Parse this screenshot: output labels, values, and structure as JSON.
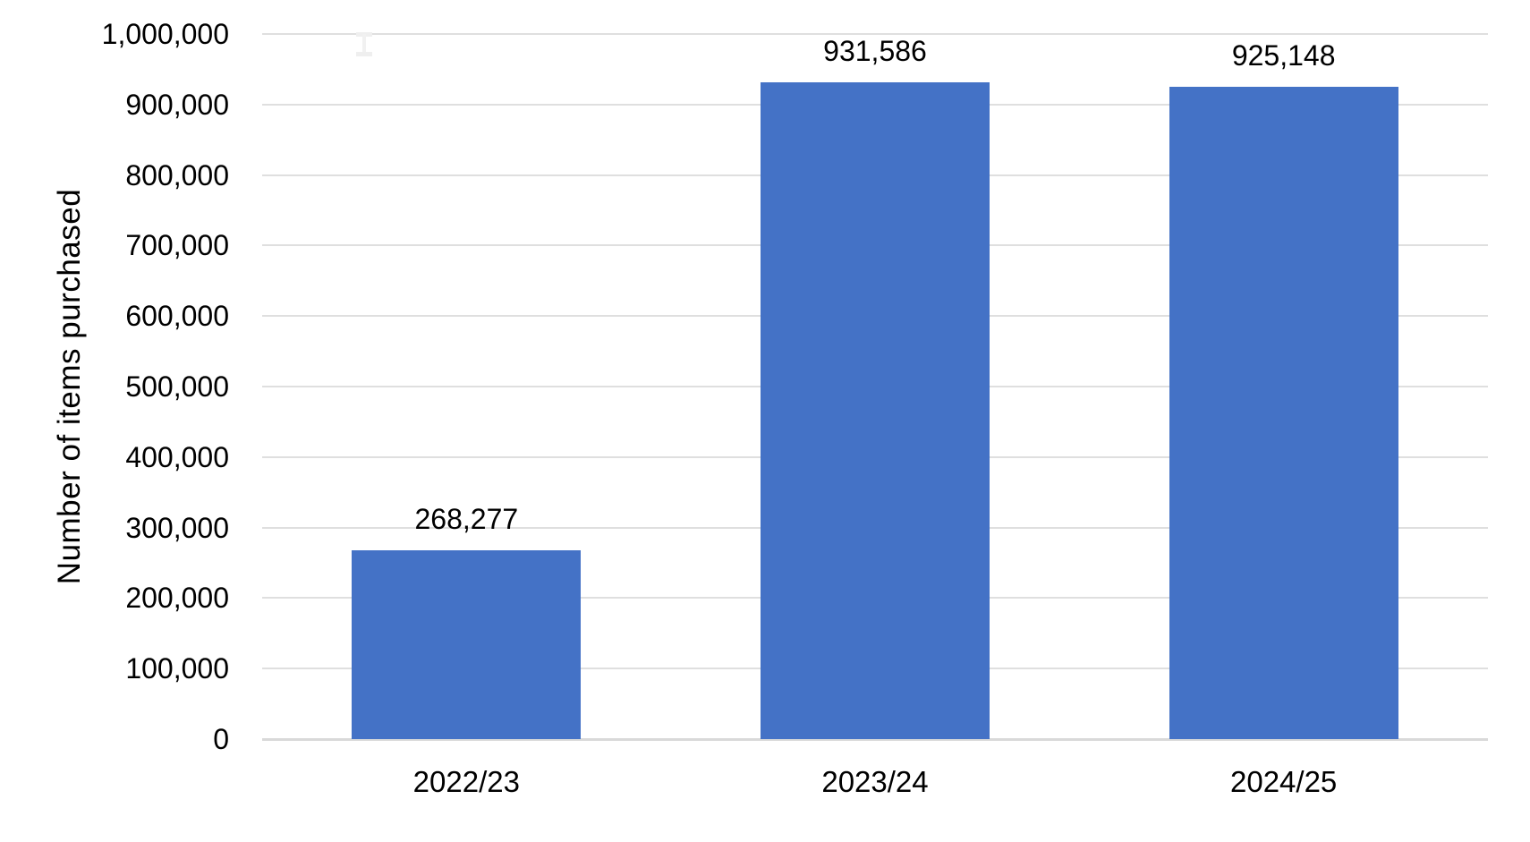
{
  "chart_data": {
    "type": "bar",
    "title": "",
    "categories": [
      "2022/23",
      "2023/24",
      "2024/25"
    ],
    "values": [
      268277,
      931586,
      925148
    ],
    "data_labels": [
      "268,277",
      "931,586",
      "925,148"
    ],
    "ylabel": "Number of items purchased",
    "xlabel": "",
    "ylim": [
      0,
      1000000
    ],
    "ytick_interval": 100000,
    "ytick_labels": [
      "0",
      "100,000",
      "200,000",
      "300,000",
      "400,000",
      "500,000",
      "600,000",
      "700,000",
      "800,000",
      "900,000",
      "1,000,000"
    ],
    "grid": true,
    "legend": false,
    "bar_color": "#4472C6",
    "gridline_color": "#DFDFDF",
    "axis_line_color": "#D9D9D9",
    "label_color": "#000000",
    "background_color": "#FFFFFF"
  }
}
